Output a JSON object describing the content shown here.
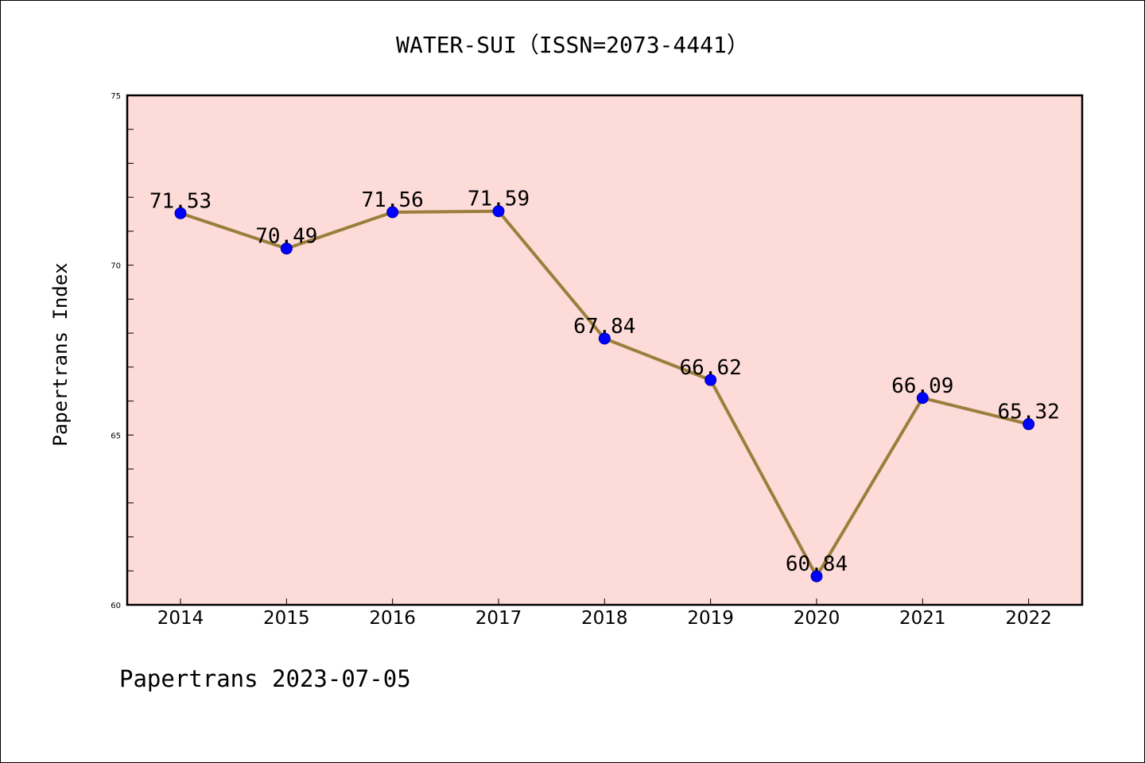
{
  "chart_data": {
    "type": "line",
    "title": "WATER-SUI（ISSN=2073-4441）",
    "ylabel": "Papertrans Index",
    "xlabel": "",
    "footer": "Papertrans 2023-07-05",
    "x": [
      "2014",
      "2015",
      "2016",
      "2017",
      "2018",
      "2019",
      "2020",
      "2021",
      "2022"
    ],
    "series": [
      {
        "values": [
          71.53,
          70.49,
          71.56,
          71.59,
          67.84,
          66.62,
          60.84,
          66.09,
          65.32
        ],
        "labels": [
          "71.53",
          "70.49",
          "71.56",
          "71.59",
          "67.84",
          "66.62",
          "60.84",
          "66.09",
          "65.32"
        ]
      }
    ],
    "ylim": [
      60,
      75
    ],
    "yticks": [
      "60",
      "65",
      "70",
      "75"
    ],
    "grid": false,
    "colors": {
      "plot_background": "#fddbd8",
      "line": "#9c7e3c",
      "marker": "#0000ff"
    }
  }
}
